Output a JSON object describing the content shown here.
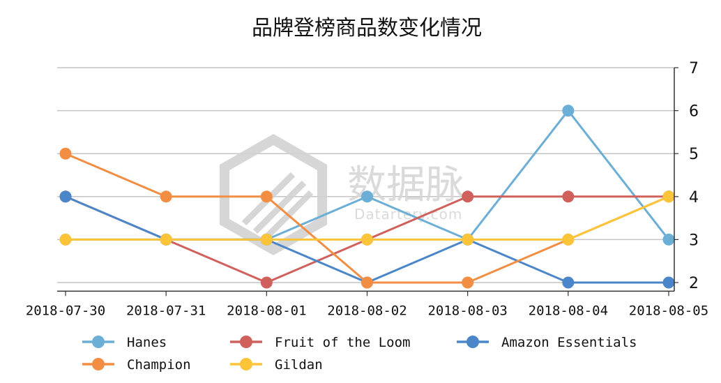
{
  "chart_data": {
    "type": "line",
    "title": "品牌登榜商品数变化情况",
    "x": [
      "2018-07-30",
      "2018-07-31",
      "2018-08-01",
      "2018-08-02",
      "2018-08-03",
      "2018-08-04",
      "2018-08-05"
    ],
    "ylim": [
      1.8,
      7
    ],
    "yticks": [
      2,
      3,
      4,
      5,
      6,
      7
    ],
    "grid": true,
    "legend_position": "bottom",
    "y_axis_side": "right",
    "series": [
      {
        "name": "Hanes",
        "color": "#6baed6",
        "values": [
          3,
          3,
          3,
          4,
          3,
          6,
          3
        ]
      },
      {
        "name": "Fruit of the Loom",
        "color": "#d0605b",
        "values": [
          4,
          3,
          2,
          3,
          4,
          4,
          4
        ]
      },
      {
        "name": "Amazon Essentials",
        "color": "#4a86c8",
        "values": [
          4,
          3,
          3,
          2,
          3,
          2,
          2
        ]
      },
      {
        "name": "Champion",
        "color": "#f28e43",
        "values": [
          5,
          4,
          4,
          2,
          2,
          3,
          4
        ]
      },
      {
        "name": "Gildan",
        "color": "#fcc438",
        "values": [
          3,
          3,
          3,
          3,
          3,
          3,
          4
        ]
      }
    ]
  },
  "watermark": {
    "text": "数据脉",
    "sub": "Datartery.com"
  }
}
